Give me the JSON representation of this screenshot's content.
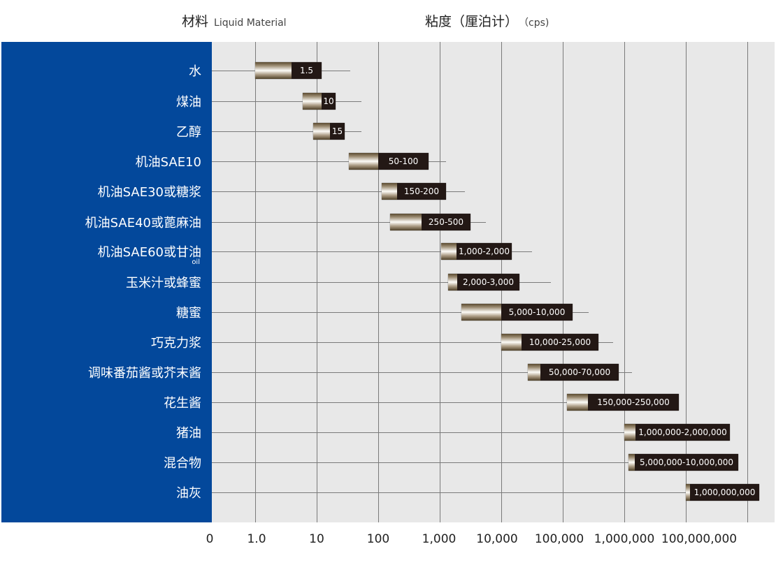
{
  "header": {
    "material_label": "材料",
    "material_en": "Liquid Material",
    "viscosity_label": "粘度（厘泊计）",
    "unit": "（cps)"
  },
  "colors": {
    "sidebar": "#03489b",
    "plot_bg": "#e8e8e8",
    "label_box": "#231815"
  },
  "chart_data": {
    "type": "bar",
    "categories": [
      "水",
      "煤油",
      "乙醇",
      "机油SAE10",
      "机油SAE30或糖浆",
      "机油SAE40或蓖麻油",
      "机油SAE60或甘油",
      "玉米汁或蜂蜜",
      "糖蜜",
      "巧克力浆",
      "调味番茄酱或芥末酱",
      "花生酱",
      "猪油",
      "混合物",
      "油灰"
    ],
    "category_notes": {
      "6": "oil"
    },
    "value_labels": [
      "1.5",
      "10",
      "15",
      "50-100",
      "150-200",
      "250-500",
      "1,000-2,000",
      "2,000-3,000",
      "5,000-10,000",
      "10,000-25,000",
      "50,000-70,000",
      "150,000-250,000",
      "1,000,000-2,000,000",
      "5,000,000-10,000,000",
      "1,000,000,000"
    ],
    "x_tick_labels": [
      "0",
      "1.0",
      "10",
      "100",
      "1,000",
      "10,000",
      "100,000",
      "1,000,000",
      "100,000,000"
    ],
    "x_scale": "log",
    "grid": true
  }
}
